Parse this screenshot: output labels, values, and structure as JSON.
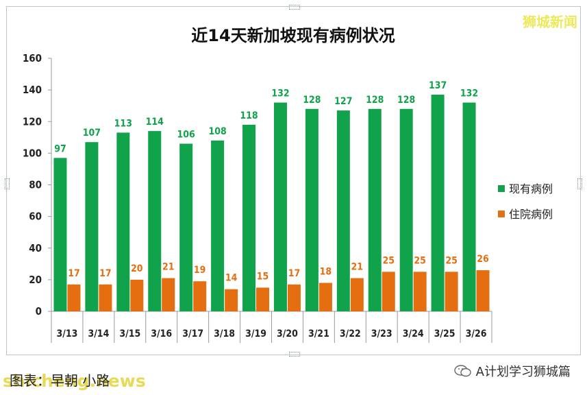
{
  "chart_data": {
    "type": "bar",
    "title": "近14天新加坡现有病例状况",
    "categories": [
      "3/13",
      "3/14",
      "3/15",
      "3/16",
      "3/17",
      "3/18",
      "3/19",
      "3/20",
      "3/21",
      "3/22",
      "3/23",
      "3/24",
      "3/25",
      "3/26"
    ],
    "series": [
      {
        "name": "现有病例",
        "color": "#11a24c",
        "values": [
          97,
          107,
          113,
          114,
          106,
          108,
          118,
          132,
          128,
          127,
          128,
          128,
          137,
          132
        ]
      },
      {
        "name": "住院病例",
        "color": "#e56f10",
        "values": [
          17,
          17,
          20,
          21,
          19,
          14,
          15,
          17,
          18,
          21,
          25,
          25,
          25,
          26
        ]
      }
    ],
    "ylim": [
      0,
      160
    ],
    "yticks": [
      0,
      20,
      40,
      60,
      80,
      100,
      120,
      140,
      160
    ],
    "grid": false,
    "legend": "right",
    "xlabel": "",
    "ylabel": ""
  },
  "brand": "狮城新闻",
  "source": "图表：早朝 小路",
  "watermark": "shicheng.news",
  "wechat": "A计划学习狮城篇"
}
